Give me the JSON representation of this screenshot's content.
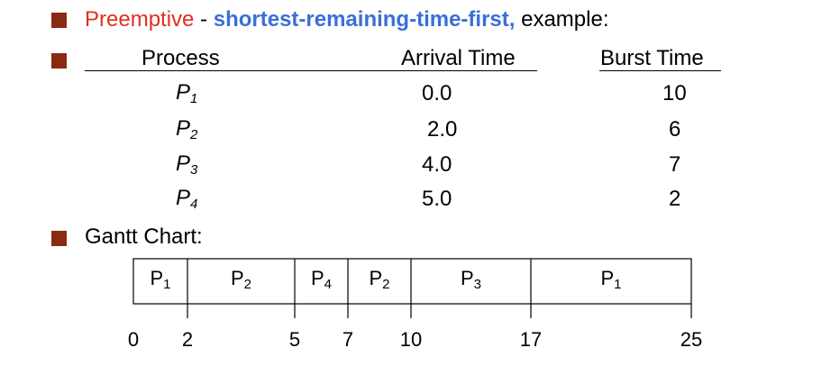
{
  "heading": {
    "prefix": "Preemptive",
    "separator": " - ",
    "emphasis": "shortest-remaining-time-first,",
    "suffix": " example:"
  },
  "table": {
    "headers": [
      "Process",
      "Arrival Time",
      "Burst Time"
    ],
    "rows": [
      {
        "name": "P",
        "sub": "1",
        "arrival": "0.0",
        "burst": "10"
      },
      {
        "name": "P",
        "sub": "2",
        "arrival": "2.0",
        "burst": "6"
      },
      {
        "name": "P",
        "sub": "3",
        "arrival": "4.0",
        "burst": "7"
      },
      {
        "name": "P",
        "sub": "4",
        "arrival": "5.0",
        "burst": "2"
      }
    ]
  },
  "gantt": {
    "label": "Gantt Chart:",
    "segments": [
      {
        "name": "P",
        "sub": "1",
        "start": 0,
        "end": 2
      },
      {
        "name": "P",
        "sub": "2",
        "start": 2,
        "end": 5
      },
      {
        "name": "P",
        "sub": "4",
        "start": 5,
        "end": 7
      },
      {
        "name": "P",
        "sub": "2",
        "start": 7,
        "end": 10
      },
      {
        "name": "P",
        "sub": "3",
        "start": 10,
        "end": 17
      },
      {
        "name": "P",
        "sub": "1",
        "start": 17,
        "end": 25
      }
    ],
    "ticks": [
      "0",
      "2",
      "5",
      "7",
      "10",
      "17",
      "25"
    ]
  },
  "colors": {
    "bullet": "#8b2a12",
    "preemptive": "#e0301e",
    "emphasis": "#3a6fd8"
  }
}
